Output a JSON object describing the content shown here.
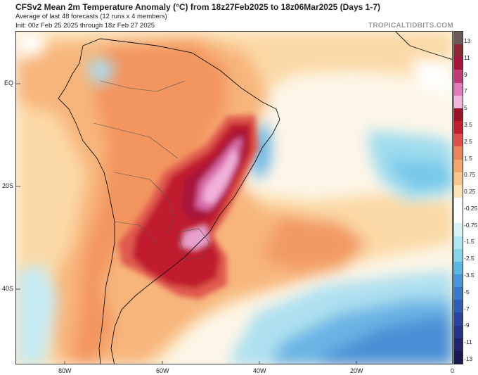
{
  "header": {
    "title": "CFSv2 Mean 2m Temperature Anomaly (°C) from 18z27Feb2025 to 18z06Mar2025 (Days 1-7)",
    "subtitle1": "Average of last 48 forecasts (12 runs x 4 members)",
    "subtitle2": "Init: 00z Feb 25 2025 through 18z Feb 27 2025",
    "credit": "TROPICALTIDBITS.COM"
  },
  "map": {
    "region": "South America and South Atlantic",
    "variable": "2m temperature anomaly",
    "lat_labels": [
      "EQ",
      "20S",
      "40S"
    ],
    "lon_labels": [
      "80W",
      "60W",
      "40W",
      "20W",
      "0"
    ],
    "hotspots": [
      "central/southern Brazil",
      "Paraguay",
      "Uruguay",
      "northern Argentina"
    ]
  },
  "colorbar": {
    "labels": [
      "13",
      "11",
      "9",
      "7",
      "5",
      "3.5",
      "2.5",
      "1.5",
      "0.75",
      "0.25",
      "-0.25",
      "-0.75",
      "-1.5",
      "-2.5",
      "-3.5",
      "-5",
      "-7",
      "-9",
      "-11",
      "-13"
    ],
    "colors": [
      "#6b5a55",
      "#8c2630",
      "#a8153a",
      "#c03a78",
      "#e07ab8",
      "#f2b6dc",
      "#9a1428",
      "#c0202c",
      "#e0504a",
      "#ee8258",
      "#f5a66c",
      "#f8c68c",
      "#fce3b6",
      "#ffffff",
      "#ffffff",
      "#d8f2f6",
      "#b0e6f0",
      "#86d4ea",
      "#5ab8e4",
      "#4896dc",
      "#3a78cc",
      "#2f5cb8",
      "#2a44a0",
      "#263488",
      "#20256c",
      "#1a1a50"
    ]
  }
}
